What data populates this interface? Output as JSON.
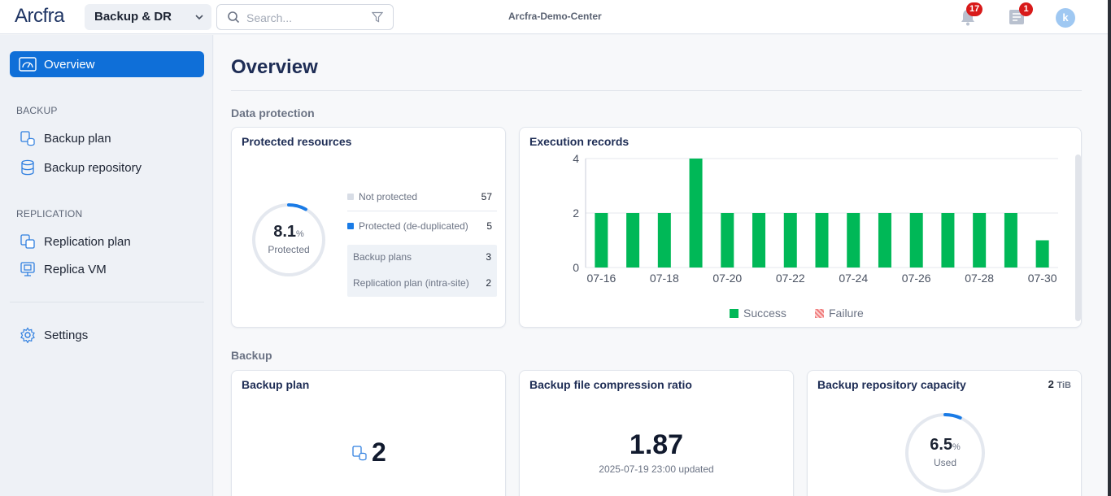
{
  "header": {
    "logo": "Arcfra",
    "product": "Backup & DR",
    "search_placeholder": "Search...",
    "cluster": "Arcfra-Demo-Center",
    "alerts_count": "17",
    "tasks_count": "1",
    "avatar_letter": "k"
  },
  "sidebar": {
    "overview": "Overview",
    "backup_section": "BACKUP",
    "backup_plan": "Backup plan",
    "backup_repository": "Backup repository",
    "replication_section": "REPLICATION",
    "replication_plan": "Replication plan",
    "replica_vm": "Replica VM",
    "settings": "Settings"
  },
  "page": {
    "title": "Overview",
    "data_protection": "Data protection",
    "backup_section": "Backup"
  },
  "protected": {
    "title": "Protected resources",
    "percent": "8.1",
    "percent_unit": "%",
    "label": "Protected",
    "fraction": 0.081,
    "not_protected_label": "Not protected",
    "not_protected_value": "57",
    "protected_label": "Protected (de-duplicated)",
    "protected_value": "5",
    "backup_plans_label": "Backup plans",
    "backup_plans_value": "3",
    "replication_label": "Replication plan (intra-site)",
    "replication_value": "2"
  },
  "execution": {
    "title": "Execution records",
    "success_label": "Success",
    "failure_label": "Failure"
  },
  "backup_plan_card": {
    "title": "Backup plan",
    "value": "2"
  },
  "compression": {
    "title": "Backup file compression ratio",
    "value": "1.87",
    "updated": "2025-07-19 23:00 updated"
  },
  "capacity": {
    "title": "Backup repository capacity",
    "total_value": "2",
    "total_unit": "TiB",
    "percent": "6.5",
    "percent_unit": "%",
    "label": "Used",
    "fraction": 0.065
  },
  "colors": {
    "accent": "#0f6fd8",
    "success": "#00b857",
    "failure": "#f07c7c"
  },
  "chart_data": {
    "type": "bar",
    "categories": [
      "07-16",
      "07-17",
      "07-18",
      "07-19",
      "07-20",
      "07-21",
      "07-22",
      "07-23",
      "07-24",
      "07-25",
      "07-26",
      "07-27",
      "07-28",
      "07-29",
      "07-30"
    ],
    "x_tick_labels": [
      "07-16",
      "07-18",
      "07-20",
      "07-22",
      "07-24",
      "07-26",
      "07-28",
      "07-30"
    ],
    "y_ticks": [
      "0",
      "2",
      "4"
    ],
    "series": [
      {
        "name": "Success",
        "values": [
          2,
          2,
          2,
          4,
          2,
          2,
          2,
          2,
          2,
          2,
          2,
          2,
          2,
          2,
          1
        ]
      },
      {
        "name": "Failure",
        "values": [
          0,
          0,
          0,
          0,
          0,
          0,
          0,
          0,
          0,
          0,
          0,
          0,
          0,
          0,
          0
        ]
      }
    ],
    "ylim": [
      0,
      4
    ],
    "grid": true,
    "legend": "bottom"
  }
}
